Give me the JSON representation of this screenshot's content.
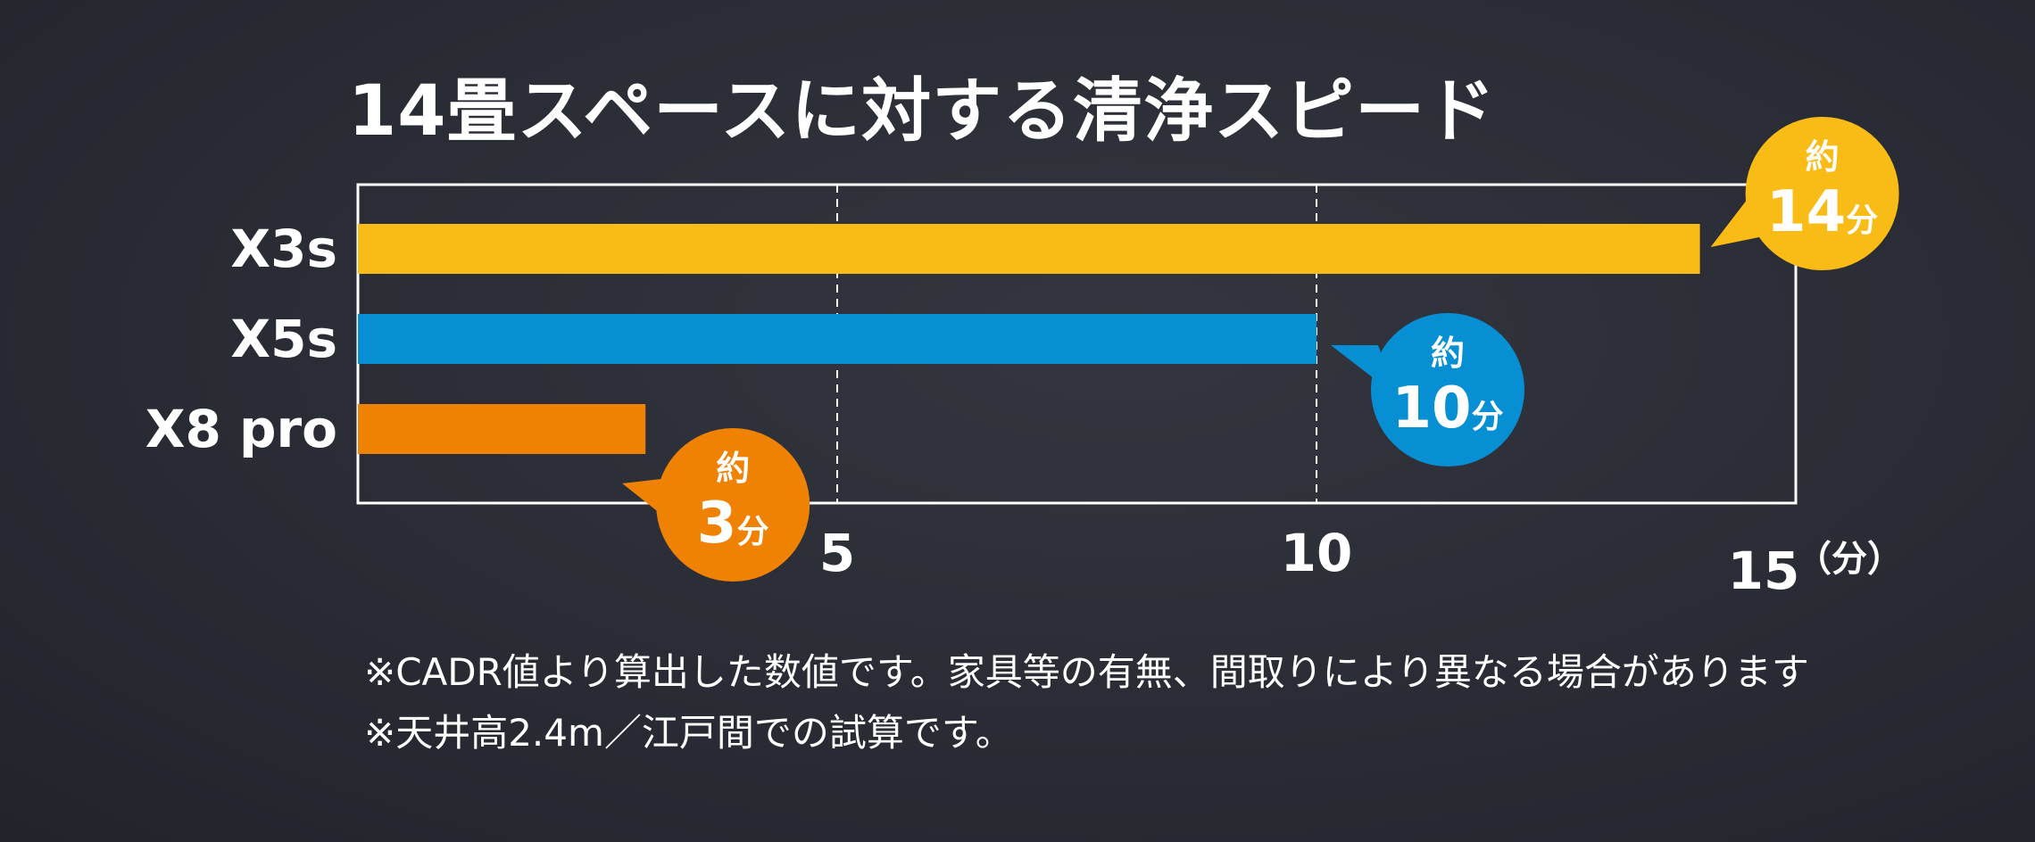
{
  "chart_data": {
    "type": "bar",
    "orientation": "horizontal",
    "title": "14畳スペースに対する清浄スピード",
    "categories": [
      "X3s",
      "X5s",
      "X8 pro"
    ],
    "values": [
      14,
      10,
      3
    ],
    "unit": "分",
    "xlabel": "（分）",
    "xlim": [
      0,
      15
    ],
    "xticks": [
      5,
      10,
      15
    ],
    "grid": "dashed-vertical",
    "colors": [
      "#f9bb15",
      "#078fd4",
      "#f08203"
    ],
    "callouts": [
      {
        "prefix": "約",
        "value": "14",
        "unit": "分"
      },
      {
        "prefix": "約",
        "value": "10",
        "unit": "分"
      },
      {
        "prefix": "約",
        "value": "3",
        "unit": "分"
      }
    ]
  },
  "notes": [
    "※CADR値より算出した数値です。家具等の有無、間取りにより異なる場合があります",
    "※天井高2.4m／江戸間での試算です。"
  ]
}
